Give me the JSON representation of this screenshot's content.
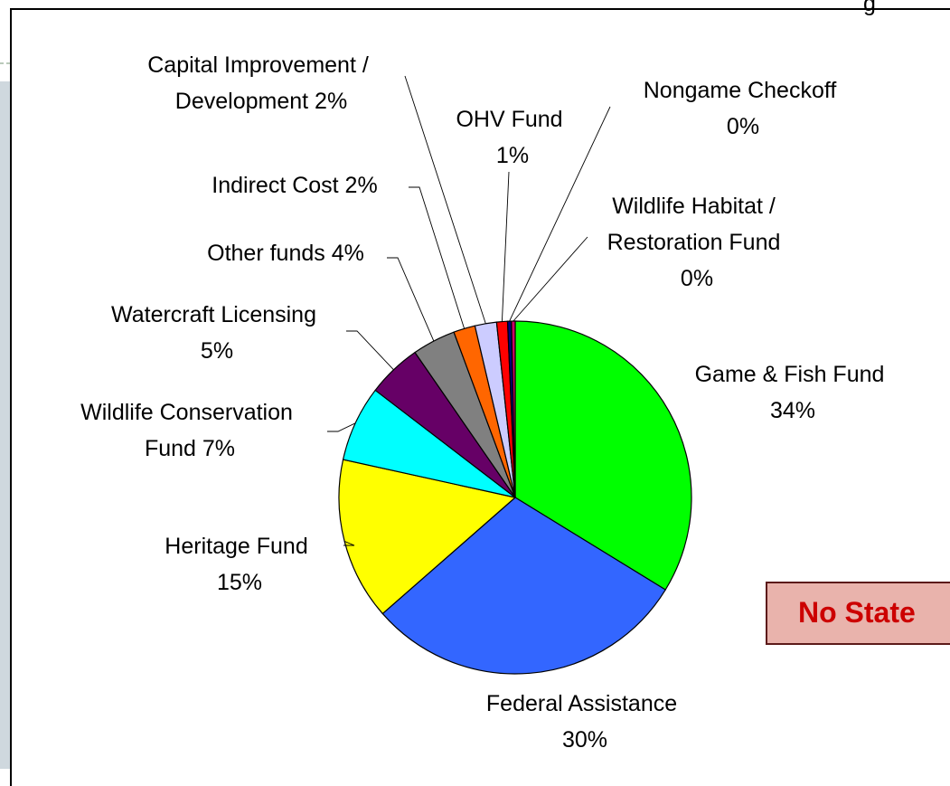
{
  "chart_data": {
    "type": "pie",
    "slices": [
      {
        "label": "Game & Fish Fund",
        "value": 34,
        "color": "#00ff00"
      },
      {
        "label": "Federal Assistance",
        "value": 30,
        "color": "#3366ff"
      },
      {
        "label": "Heritage Fund",
        "value": 15,
        "color": "#ffff00"
      },
      {
        "label": "Wildlife Conservation Fund",
        "value": 7,
        "color": "#00ffff"
      },
      {
        "label": "Watercraft Licensing",
        "value": 5,
        "color": "#660066"
      },
      {
        "label": "Other funds",
        "value": 4,
        "color": "#808080"
      },
      {
        "label": "Indirect Cost",
        "value": 2,
        "color": "#ff6600"
      },
      {
        "label": "Capital Improvement / Development",
        "value": 2,
        "color": "#ccccff"
      },
      {
        "label": "OHV Fund",
        "value": 1,
        "color": "#ff0000"
      },
      {
        "label": "Nongame Checkoff",
        "value": 0,
        "color": "#000080"
      },
      {
        "label": "Wildlife Habitat / Restoration Fund",
        "value": 0,
        "color": "#cc0066"
      }
    ],
    "labels": {
      "game_fish": [
        "Game & Fish Fund",
        "34%"
      ],
      "federal": [
        "Federal Assistance",
        "30%"
      ],
      "heritage": [
        "Heritage Fund",
        "15%"
      ],
      "wildlife_cons": [
        "Wildlife Conservation",
        "Fund  7%"
      ],
      "watercraft": [
        "Watercraft Licensing",
        "5%"
      ],
      "other": [
        "Other funds  4%"
      ],
      "indirect": [
        "Indirect Cost  2%"
      ],
      "capital": [
        "Capital Improvement /",
        "Development  2%"
      ],
      "ohv": [
        "OHV Fund",
        "1%"
      ],
      "nongame": [
        "Nongame Checkoff",
        "0%"
      ],
      "habitat": [
        "Wildlife Habitat /",
        "Restoration Fund",
        "0%"
      ]
    }
  },
  "banner": {
    "text": "No State"
  }
}
